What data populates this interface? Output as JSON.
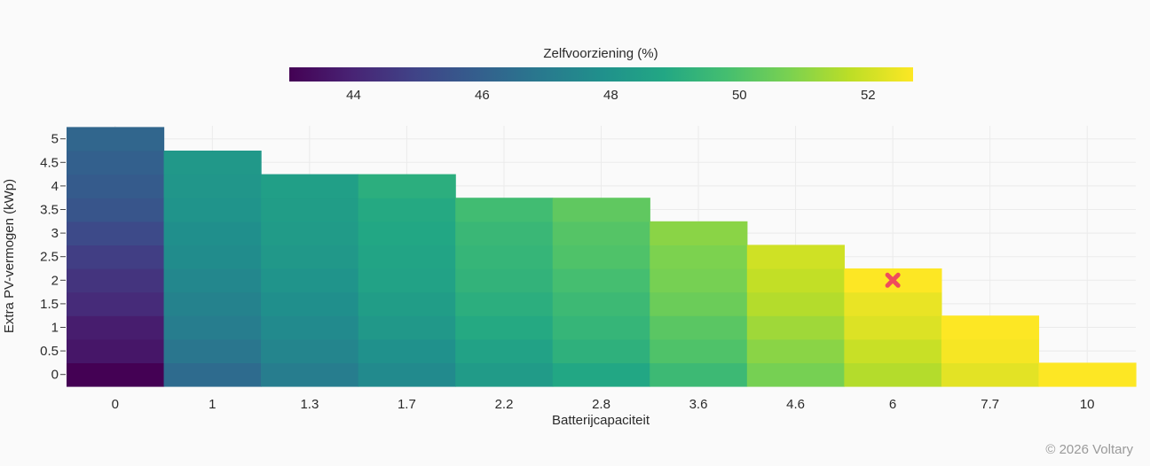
{
  "chart_data": {
    "type": "heatmap",
    "colorbar_title": "Zelfvoorziening (%)",
    "colorbar_range": [
      43.0,
      52.7
    ],
    "colorbar_ticks": [
      44,
      46,
      48,
      50,
      52
    ],
    "colorscale": "viridis",
    "xlabel": "Batterijcapaciteit",
    "ylabel": "Extra PV-vermogen (kWp)",
    "x_categories": [
      "0",
      "1",
      "1.3",
      "1.7",
      "2.2",
      "2.8",
      "3.6",
      "4.6",
      "6",
      "7.7",
      "10"
    ],
    "y_categories": [
      "0",
      "0.5",
      "1",
      "1.5",
      "2",
      "2.5",
      "3",
      "3.5",
      "4",
      "4.5",
      "5"
    ],
    "y_tick_labels": [
      "0",
      "0.5",
      "1",
      "1.5",
      "2",
      "2.5",
      "3",
      "3.5",
      "4",
      "4.5",
      "5"
    ],
    "values": [
      [
        43.0,
        46.4,
        47.1,
        47.6,
        48.3,
        48.8,
        49.6,
        50.7,
        51.6,
        52.3,
        52.7
      ],
      [
        43.6,
        46.8,
        47.4,
        47.9,
        48.6,
        49.2,
        50.0,
        51.0,
        51.9,
        52.6,
        null
      ],
      [
        43.8,
        47.1,
        47.6,
        48.2,
        48.9,
        49.4,
        50.2,
        51.3,
        52.2,
        52.9,
        null
      ],
      [
        44.2,
        47.3,
        47.8,
        48.4,
        49.1,
        49.6,
        50.5,
        51.6,
        52.4,
        null,
        null
      ],
      [
        44.5,
        47.5,
        48.0,
        48.6,
        49.3,
        49.8,
        50.7,
        51.8,
        52.7,
        null,
        null
      ],
      [
        44.8,
        47.7,
        48.2,
        48.7,
        49.4,
        50.0,
        50.8,
        52.0,
        null,
        null,
        null
      ],
      [
        45.2,
        47.8,
        48.3,
        48.8,
        49.5,
        50.1,
        51.0,
        null,
        null,
        null,
        null
      ],
      [
        45.6,
        48.0,
        48.4,
        48.9,
        49.7,
        50.3,
        null,
        null,
        null,
        null,
        null
      ],
      [
        45.8,
        48.1,
        48.5,
        49.1,
        null,
        null,
        null,
        null,
        null,
        null,
        null
      ],
      [
        46.0,
        48.2,
        null,
        null,
        null,
        null,
        null,
        null,
        null,
        null,
        null
      ],
      [
        46.2,
        null,
        null,
        null,
        null,
        null,
        null,
        null,
        null,
        null,
        null
      ]
    ],
    "marker": {
      "x": "6",
      "y": "2",
      "symbol": "x",
      "color": "#ef4c5c"
    },
    "grid": true,
    "legend": "colorbar-top"
  },
  "watermark": "© 2026 Voltary"
}
